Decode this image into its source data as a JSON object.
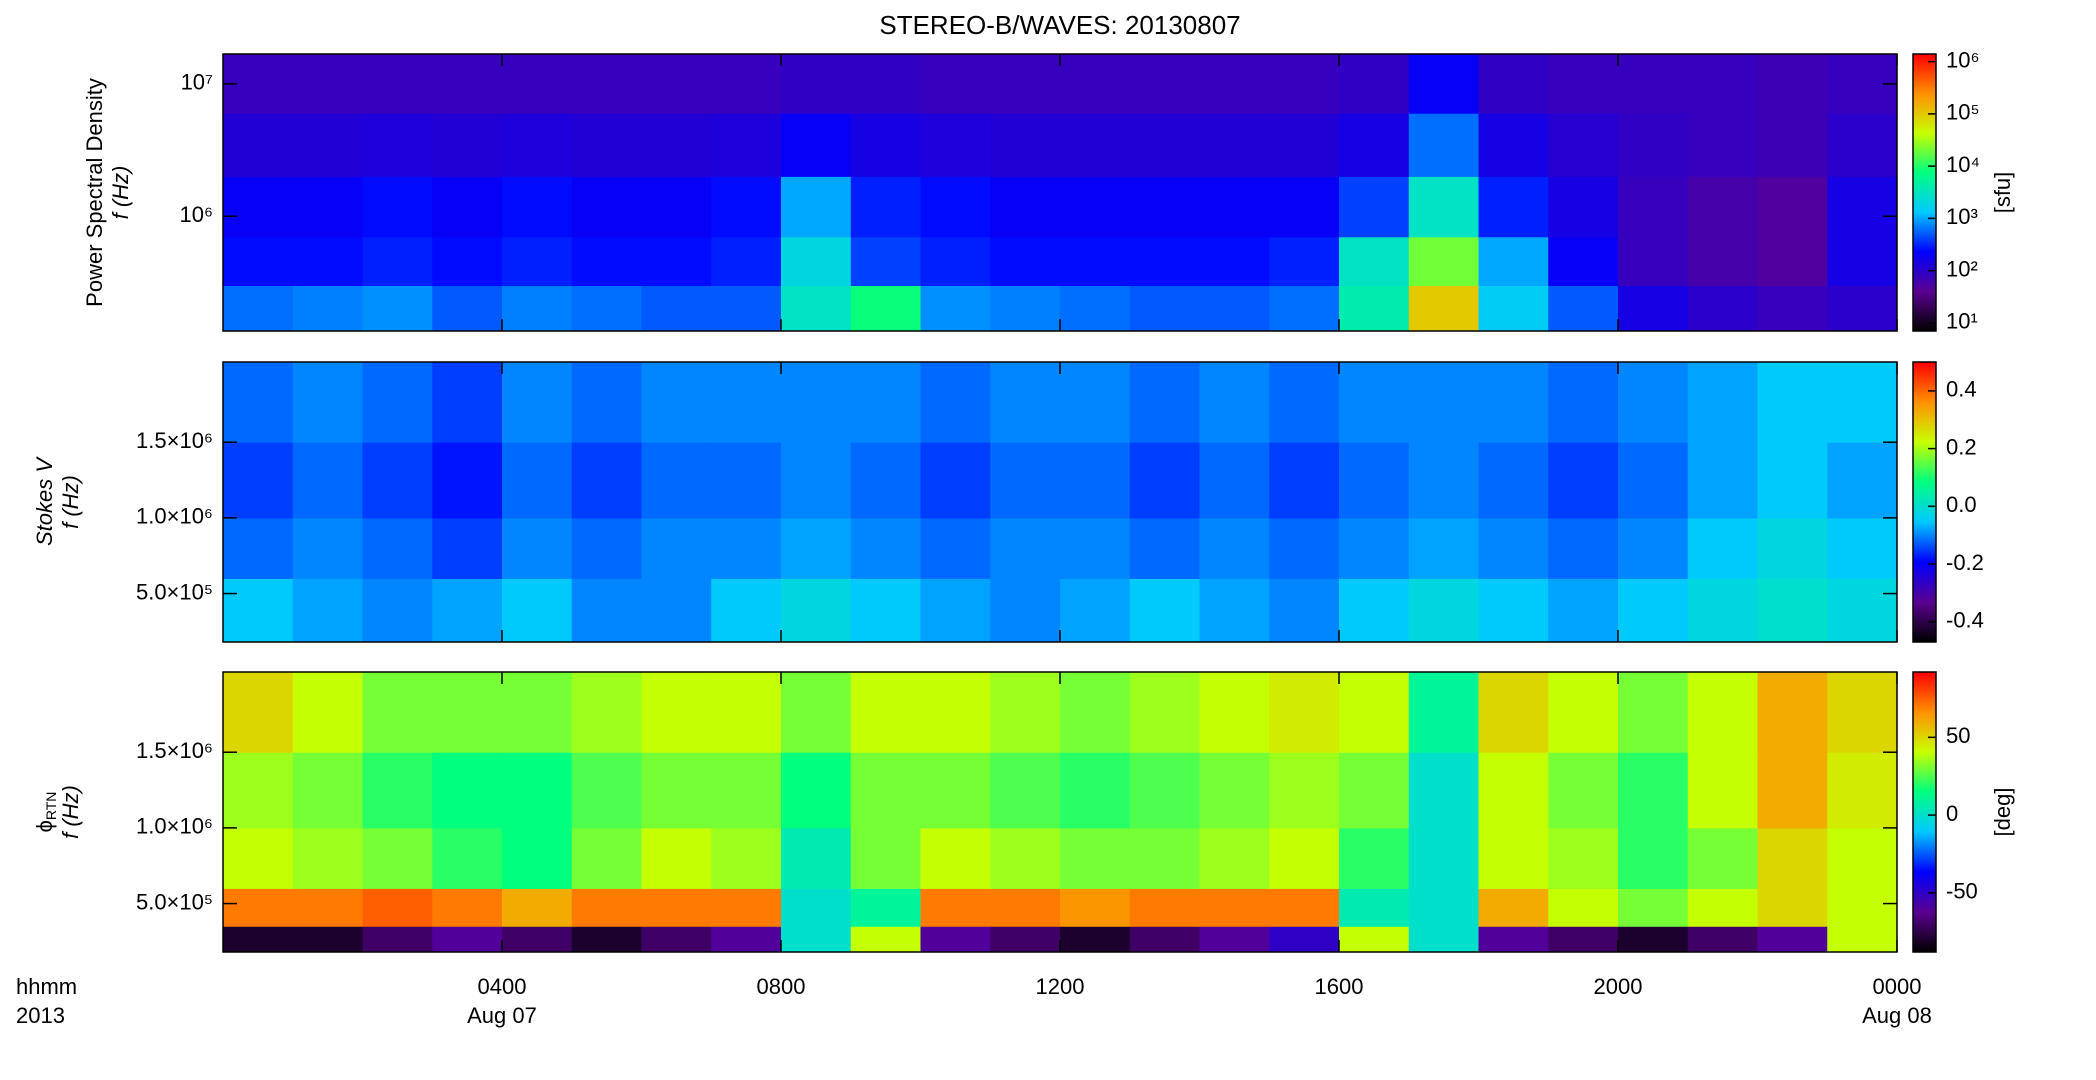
{
  "chart_data": [
    {
      "type": "heatmap",
      "title": "STEREO-B/WAVES: 20130807",
      "ylabel": [
        "Power Spectral Density",
        "f (Hz)"
      ],
      "zlabel": "[sfu]",
      "xlim": [
        0,
        24
      ],
      "log_y": true,
      "ylim": [
        136000,
        16800000
      ],
      "yticks": [
        {
          "value": 1000000,
          "label": "10⁶"
        },
        {
          "value": 10000000,
          "label": "10⁷"
        }
      ],
      "log_z": true,
      "zlim": [
        7,
        1400000
      ],
      "zticks": [
        {
          "value": 10,
          "label": "10¹"
        },
        {
          "value": 100,
          "label": "10²"
        },
        {
          "value": 1000,
          "label": "10³"
        },
        {
          "value": 10000,
          "label": "10⁴"
        },
        {
          "value": 100000,
          "label": "10⁵"
        },
        {
          "value": 1000000,
          "label": "10⁶"
        }
      ],
      "colorscale": [
        "#000000",
        "#5a0090",
        "#0000ff",
        "#00c8ff",
        "#00ff80",
        "#c8ff00",
        "#ff9000",
        "#ff0000"
      ],
      "x_edges": [
        0,
        1,
        2,
        3,
        4,
        5,
        6,
        7,
        8,
        9,
        10,
        11,
        12,
        13,
        14,
        15,
        16,
        17,
        18,
        19,
        20,
        21,
        22,
        23,
        24
      ],
      "y_edges": [
        136000,
        300000,
        700000,
        2000000,
        6000000,
        16800000
      ],
      "z": [
        [
          600,
          700,
          800,
          500,
          700,
          600,
          500,
          500,
          3000,
          8000,
          800,
          700,
          600,
          500,
          500,
          600,
          4000,
          100000,
          1500,
          500,
          150,
          100,
          80,
          100
        ],
        [
          250,
          250,
          300,
          250,
          300,
          250,
          250,
          300,
          2000,
          400,
          300,
          250,
          250,
          250,
          250,
          300,
          3000,
          20000,
          1000,
          200,
          80,
          60,
          50,
          150
        ],
        [
          200,
          200,
          250,
          200,
          250,
          200,
          200,
          250,
          1000,
          300,
          250,
          200,
          200,
          200,
          200,
          200,
          400,
          3000,
          300,
          150,
          80,
          60,
          50,
          150
        ],
        [
          120,
          120,
          130,
          120,
          130,
          120,
          120,
          130,
          200,
          150,
          130,
          120,
          120,
          120,
          120,
          120,
          150,
          600,
          150,
          110,
          90,
          80,
          70,
          100
        ],
        [
          80,
          80,
          80,
          80,
          80,
          80,
          80,
          80,
          90,
          90,
          80,
          80,
          80,
          80,
          80,
          80,
          90,
          200,
          90,
          80,
          80,
          80,
          70,
          80
        ]
      ]
    },
    {
      "type": "heatmap",
      "ylabel": [
        "Stokes V",
        "f (Hz)"
      ],
      "xlim": [
        0,
        24
      ],
      "ylim": [
        180000,
        2030000
      ],
      "yticks": [
        {
          "value": 500000,
          "label": "5.0×10⁵"
        },
        {
          "value": 1000000,
          "label": "1.0×10⁶"
        },
        {
          "value": 1500000,
          "label": "1.5×10⁶"
        }
      ],
      "zlim": [
        -0.47,
        0.5
      ],
      "zticks": [
        0.4,
        0.2,
        {
          "value": 0,
          "label": "0.0"
        },
        -0.2,
        -0.4
      ],
      "colorscale": [
        "#000000",
        "#5a0090",
        "#0000ff",
        "#00c8ff",
        "#00ff80",
        "#c8ff00",
        "#ff9000",
        "#ff0000"
      ],
      "x_edges": [
        0,
        1,
        2,
        3,
        4,
        5,
        6,
        7,
        8,
        9,
        10,
        11,
        12,
        13,
        14,
        15,
        16,
        17,
        18,
        19,
        20,
        21,
        22,
        23,
        24
      ],
      "y_edges": [
        180000,
        600000,
        1000000,
        1500000,
        2030000
      ],
      "z": [
        [
          -0.05,
          -0.08,
          -0.1,
          -0.08,
          -0.05,
          -0.1,
          -0.1,
          -0.05,
          -0.02,
          -0.05,
          -0.08,
          -0.1,
          -0.08,
          -0.05,
          -0.08,
          -0.1,
          -0.05,
          -0.02,
          -0.05,
          -0.08,
          -0.05,
          -0.02,
          0.0,
          -0.02
        ],
        [
          -0.12,
          -0.1,
          -0.12,
          -0.15,
          -0.1,
          -0.12,
          -0.1,
          -0.1,
          -0.08,
          -0.1,
          -0.12,
          -0.1,
          -0.1,
          -0.12,
          -0.1,
          -0.12,
          -0.1,
          -0.08,
          -0.1,
          -0.12,
          -0.1,
          -0.05,
          -0.02,
          -0.05
        ],
        [
          -0.15,
          -0.12,
          -0.15,
          -0.18,
          -0.12,
          -0.15,
          -0.12,
          -0.12,
          -0.1,
          -0.12,
          -0.15,
          -0.12,
          -0.12,
          -0.15,
          -0.12,
          -0.15,
          -0.12,
          -0.1,
          -0.12,
          -0.15,
          -0.12,
          -0.08,
          -0.05,
          -0.08
        ],
        [
          -0.12,
          -0.1,
          -0.12,
          -0.15,
          -0.1,
          -0.12,
          -0.1,
          -0.1,
          -0.1,
          -0.1,
          -0.12,
          -0.1,
          -0.1,
          -0.12,
          -0.1,
          -0.12,
          -0.1,
          -0.1,
          -0.1,
          -0.12,
          -0.1,
          -0.08,
          -0.05,
          -0.05
        ]
      ]
    },
    {
      "type": "heatmap",
      "ylabel": [
        "ϕ",
        "f (Hz)"
      ],
      "ylabel_sub": "RTN",
      "zlabel": "[deg]",
      "xlim": [
        0,
        24
      ],
      "xticks": [
        {
          "value": 4,
          "label": "0400"
        },
        {
          "value": 8,
          "label": "0800"
        },
        {
          "value": 12,
          "label": "1200"
        },
        {
          "value": 16,
          "label": "1600"
        },
        {
          "value": 20,
          "label": "2000"
        },
        {
          "value": 24,
          "label": "0000"
        }
      ],
      "date_labels": [
        {
          "value": 4,
          "label": "Aug 07"
        },
        {
          "value": 24,
          "label": "Aug 08"
        }
      ],
      "xlabel": [
        "hhmm",
        "2013"
      ],
      "ylim": [
        180000,
        2030000
      ],
      "yticks": [
        {
          "value": 500000,
          "label": "5.0×10⁵"
        },
        {
          "value": 1000000,
          "label": "1.0×10⁶"
        },
        {
          "value": 1500000,
          "label": "1.5×10⁶"
        }
      ],
      "zlim": [
        -88,
        92
      ],
      "zticks": [
        50,
        0,
        -50
      ],
      "colorscale": [
        "#000000",
        "#5a0090",
        "#0000ff",
        "#00c8ff",
        "#00ff80",
        "#c8ff00",
        "#ff9000",
        "#ff0000"
      ],
      "x_edges": [
        0,
        1,
        2,
        3,
        4,
        5,
        6,
        7,
        8,
        9,
        10,
        11,
        12,
        13,
        14,
        15,
        16,
        17,
        18,
        19,
        20,
        21,
        22,
        23,
        24
      ],
      "y_edges": [
        180000,
        350000,
        600000,
        1000000,
        1500000,
        2030000
      ],
      "z": [
        [
          -80,
          -80,
          -70,
          -60,
          -70,
          -80,
          -70,
          -60,
          0,
          40,
          -60,
          -70,
          -80,
          -70,
          -60,
          -50,
          40,
          0,
          -60,
          -70,
          -80,
          -70,
          -60,
          40
        ],
        [
          70,
          70,
          75,
          70,
          60,
          70,
          70,
          70,
          0,
          10,
          70,
          70,
          65,
          70,
          70,
          70,
          5,
          0,
          60,
          40,
          30,
          40,
          50,
          40
        ],
        [
          40,
          35,
          30,
          20,
          15,
          30,
          40,
          35,
          5,
          30,
          40,
          35,
          30,
          30,
          35,
          40,
          20,
          0,
          40,
          35,
          20,
          30,
          50,
          40
        ],
        [
          35,
          30,
          20,
          15,
          15,
          25,
          30,
          30,
          15,
          30,
          30,
          25,
          20,
          25,
          30,
          35,
          30,
          0,
          40,
          30,
          20,
          40,
          60,
          45
        ],
        [
          50,
          40,
          30,
          30,
          30,
          35,
          40,
          40,
          30,
          40,
          40,
          35,
          30,
          35,
          40,
          45,
          40,
          10,
          50,
          40,
          30,
          40,
          60,
          50
        ]
      ]
    }
  ]
}
